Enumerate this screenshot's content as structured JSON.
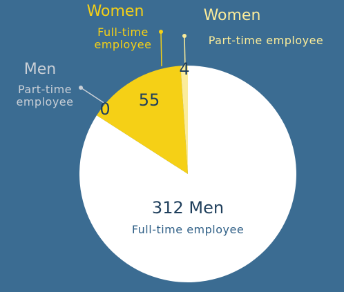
{
  "chart_data": {
    "type": "pie",
    "labels": [
      {
        "group": "Men",
        "type": "Full-time employee"
      },
      {
        "group": "Men",
        "type": "Part-time employee"
      },
      {
        "group": "Women",
        "type": "Full-time employee"
      },
      {
        "group": "Women",
        "type": "Part-time employee"
      }
    ],
    "values": [
      312,
      0,
      55,
      4
    ],
    "colors": [
      "#ffffff",
      "#c9cfd6",
      "#f5d016",
      "#fbec9a"
    ]
  }
}
